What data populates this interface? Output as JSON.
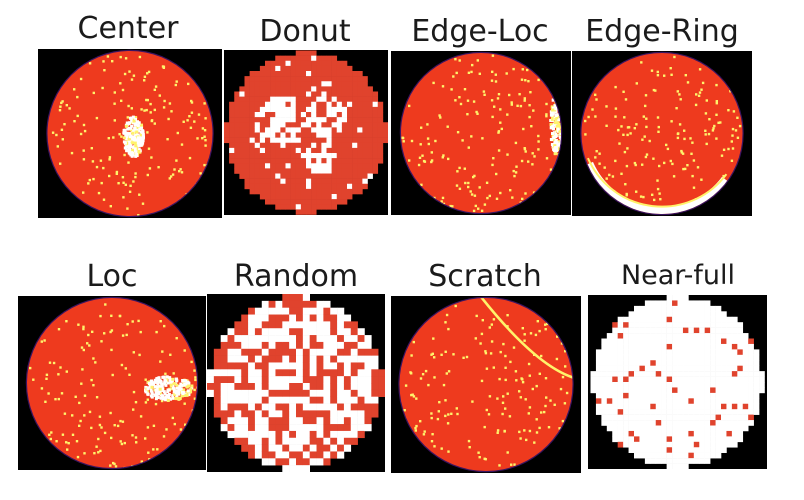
{
  "colors": {
    "background": "#000000",
    "defect_free": "#ee3a1e",
    "defect_pixel": "#fff36b",
    "dense_defect": "#ffffff",
    "grid_wafer": "#e0432d",
    "rim": "#3a1460"
  },
  "wafer_maps": [
    {
      "label": "Center",
      "pattern": "center"
    },
    {
      "label": "Donut",
      "pattern": "donut"
    },
    {
      "label": "Edge-Loc",
      "pattern": "edge-loc"
    },
    {
      "label": "Edge-Ring",
      "pattern": "edge-ring"
    },
    {
      "label": "Loc",
      "pattern": "loc"
    },
    {
      "label": "Random",
      "pattern": "random"
    },
    {
      "label": "Scratch",
      "pattern": "scratch"
    },
    {
      "label": "Near-full",
      "pattern": "near-full"
    }
  ]
}
